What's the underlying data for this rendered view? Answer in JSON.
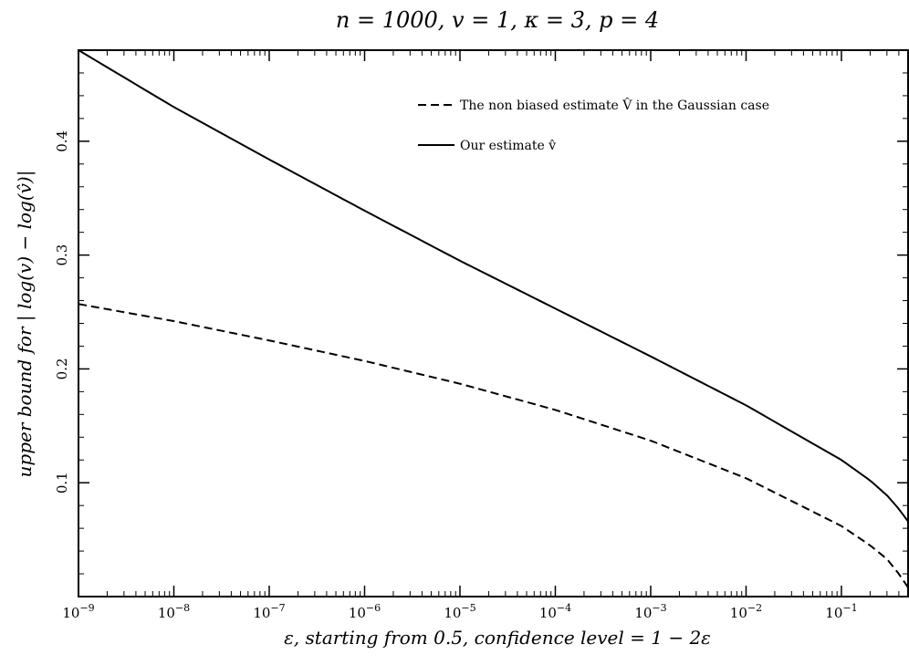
{
  "chart_data": {
    "type": "line",
    "title": "n = 1000,  v = 1,  κ = 3,  p = 4",
    "xlabel": "ε, starting from 0.5, confidence level = 1 − 2ε",
    "ylabel": "upper bound for | log(v) − log(v̂)|",
    "x_scale": "log",
    "xlim": [
      1e-09,
      0.5
    ],
    "ylim": [
      0.0,
      0.48
    ],
    "x_ticks": [
      "10",
      "10",
      "10",
      "10",
      "10",
      "10",
      "10",
      "10",
      "10"
    ],
    "x_tick_exponents": [
      "−9",
      "−8",
      "−7",
      "−6",
      "−5",
      "−4",
      "−3",
      "−2",
      "−1"
    ],
    "x_tick_values": [
      1e-09,
      1e-08,
      1e-07,
      1e-06,
      1e-05,
      0.0001,
      0.001,
      0.01,
      0.1
    ],
    "y_ticks": [
      "0.1",
      "0.2",
      "0.3",
      "0.4"
    ],
    "y_tick_values": [
      0.1,
      0.2,
      0.3,
      0.4
    ],
    "grid": false,
    "legend_position": "top-right",
    "series": [
      {
        "name": "The non biased estimate V̂ in the Gaussian case",
        "style": "dashed",
        "color": "#000000",
        "x": [
          1e-09,
          1e-08,
          1e-07,
          1e-06,
          1e-05,
          0.0001,
          0.001,
          0.01,
          0.1,
          0.2,
          0.3,
          0.4,
          0.5
        ],
        "y": [
          0.257,
          0.242,
          0.225,
          0.207,
          0.187,
          0.164,
          0.137,
          0.104,
          0.062,
          0.045,
          0.033,
          0.02,
          0.008
        ]
      },
      {
        "name": "Our estimate v̂",
        "style": "solid",
        "color": "#000000",
        "x": [
          1e-09,
          1e-08,
          1e-07,
          1e-06,
          1e-05,
          0.0001,
          0.001,
          0.01,
          0.1,
          0.2,
          0.3,
          0.4,
          0.5
        ],
        "y": [
          0.48,
          0.43,
          0.384,
          0.339,
          0.295,
          0.253,
          0.211,
          0.168,
          0.12,
          0.102,
          0.089,
          0.077,
          0.066
        ]
      }
    ]
  }
}
